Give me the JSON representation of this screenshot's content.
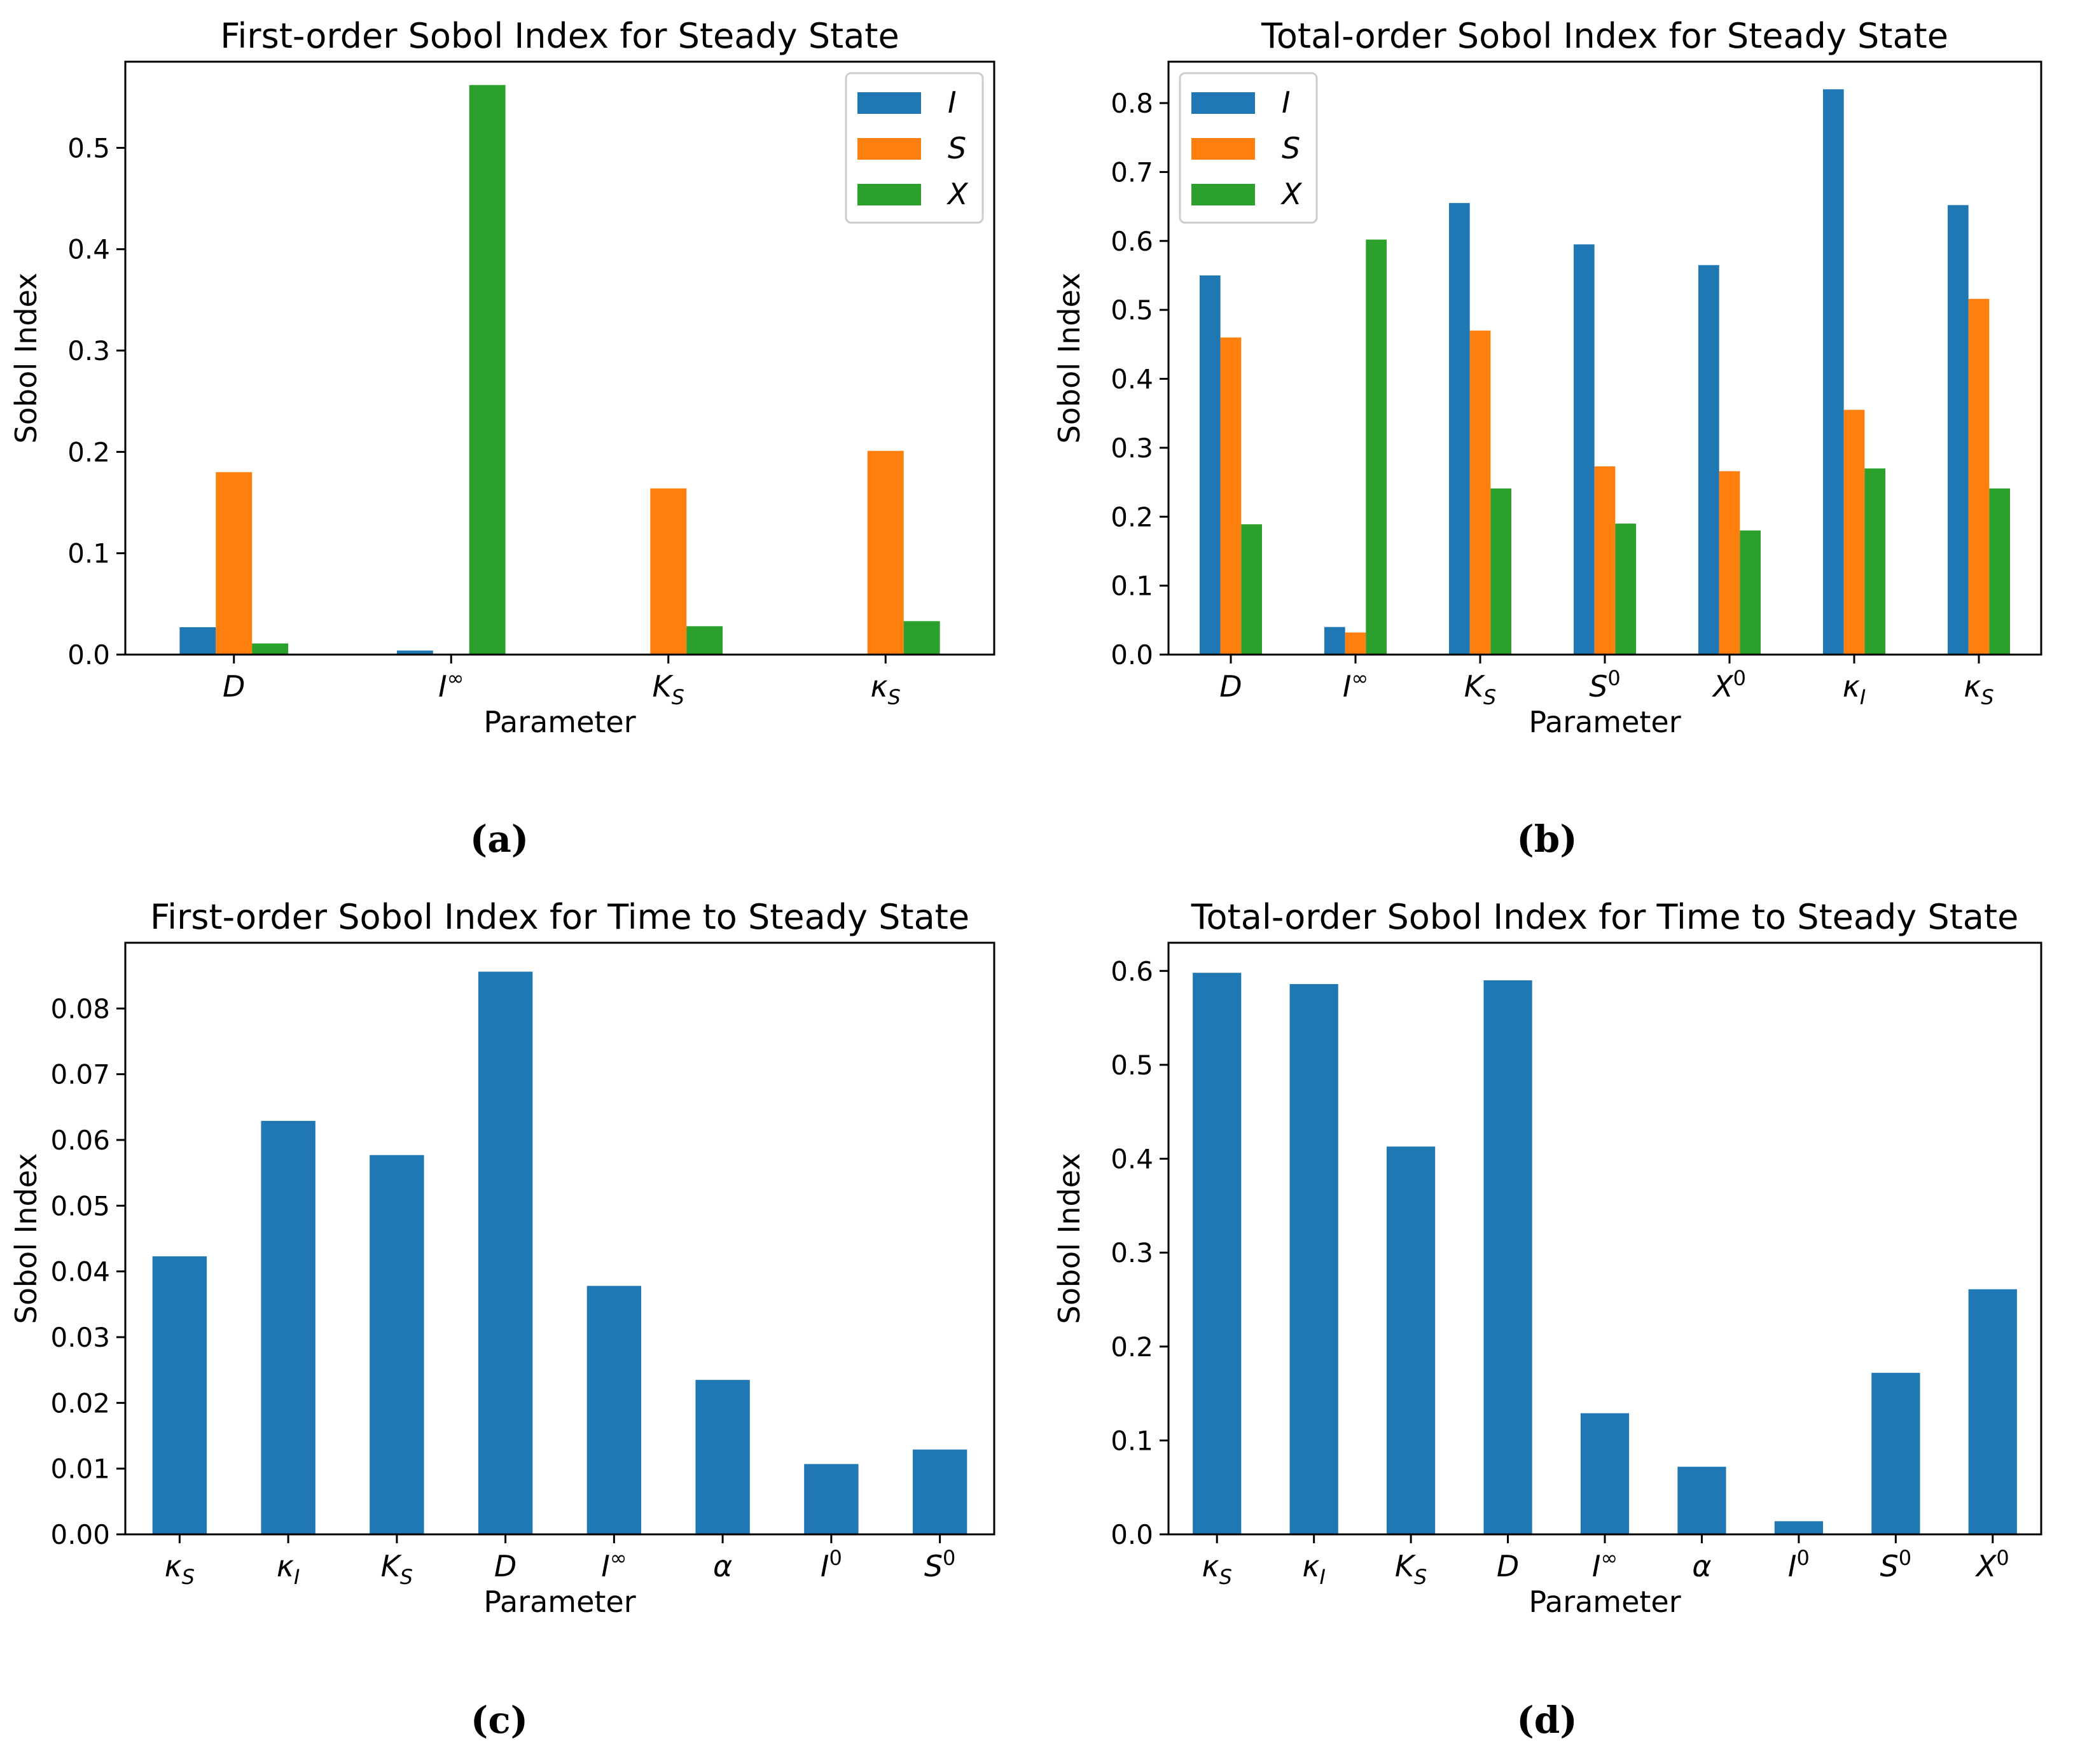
{
  "colors": {
    "I": "#1f77b4",
    "S": "#ff7f0e",
    "X": "#2ca02c"
  },
  "captions": [
    "(a)",
    "(b)",
    "(c)",
    "(d)"
  ],
  "chart_data": [
    {
      "type": "bar",
      "title": "First-order Sobol Index for Steady State",
      "xlabel": "Parameter",
      "ylabel": "Sobol Index",
      "ylim": [
        0,
        0.585
      ],
      "yticks": [
        "0.0",
        "0.1",
        "0.2",
        "0.3",
        "0.4",
        "0.5"
      ],
      "categories": [
        {
          "base": "D",
          "sup": "",
          "sub": ""
        },
        {
          "base": "I",
          "sup": "∞",
          "sub": ""
        },
        {
          "base": "K",
          "sup": "",
          "sub": "S"
        },
        {
          "base": "κ",
          "sup": "",
          "sub": "S"
        }
      ],
      "series": [
        {
          "name": "I",
          "values": [
            0.027,
            0.004,
            0.0,
            0.0
          ]
        },
        {
          "name": "S",
          "values": [
            0.18,
            0.0,
            0.164,
            0.201
          ]
        },
        {
          "name": "X",
          "values": [
            0.011,
            0.562,
            0.028,
            0.033
          ]
        }
      ],
      "legend": "top-right"
    },
    {
      "type": "bar",
      "title": "Total-order Sobol Index for Steady State",
      "xlabel": "Parameter",
      "ylabel": "Sobol Index",
      "ylim": [
        0,
        0.86
      ],
      "yticks": [
        "0.0",
        "0.1",
        "0.2",
        "0.3",
        "0.4",
        "0.5",
        "0.6",
        "0.7",
        "0.8"
      ],
      "categories": [
        {
          "base": "D",
          "sup": "",
          "sub": ""
        },
        {
          "base": "I",
          "sup": "∞",
          "sub": ""
        },
        {
          "base": "K",
          "sup": "",
          "sub": "S"
        },
        {
          "base": "S",
          "sup": "0",
          "sub": ""
        },
        {
          "base": "X",
          "sup": "0",
          "sub": ""
        },
        {
          "base": "κ",
          "sup": "",
          "sub": "I"
        },
        {
          "base": "κ",
          "sup": "",
          "sub": "S"
        }
      ],
      "series": [
        {
          "name": "I",
          "values": [
            0.55,
            0.04,
            0.655,
            0.595,
            0.565,
            0.82,
            0.652
          ]
        },
        {
          "name": "S",
          "values": [
            0.46,
            0.032,
            0.47,
            0.273,
            0.266,
            0.355,
            0.516
          ]
        },
        {
          "name": "X",
          "values": [
            0.189,
            0.602,
            0.241,
            0.19,
            0.18,
            0.27,
            0.241
          ]
        }
      ],
      "legend": "top-left"
    },
    {
      "type": "bar",
      "title": "First-order Sobol Index for Time to Steady State",
      "xlabel": "Parameter",
      "ylabel": "Sobol Index",
      "ylim": [
        0,
        0.09
      ],
      "yticks": [
        "0.00",
        "0.01",
        "0.02",
        "0.03",
        "0.04",
        "0.05",
        "0.06",
        "0.07",
        "0.08"
      ],
      "categories": [
        {
          "base": "κ",
          "sup": "",
          "sub": "S"
        },
        {
          "base": "κ",
          "sup": "",
          "sub": "I"
        },
        {
          "base": "K",
          "sup": "",
          "sub": "S"
        },
        {
          "base": "D",
          "sup": "",
          "sub": ""
        },
        {
          "base": "I",
          "sup": "∞",
          "sub": ""
        },
        {
          "base": "α",
          "sup": "",
          "sub": ""
        },
        {
          "base": "I",
          "sup": "0",
          "sub": ""
        },
        {
          "base": "S",
          "sup": "0",
          "sub": ""
        }
      ],
      "series": [
        {
          "name": "",
          "values": [
            0.0423,
            0.0629,
            0.0577,
            0.0856,
            0.0378,
            0.0235,
            0.0107,
            0.0129
          ]
        }
      ],
      "legend": "none"
    },
    {
      "type": "bar",
      "title": "Total-order Sobol Index for Time to Steady State",
      "xlabel": "Parameter",
      "ylabel": "Sobol Index",
      "ylim": [
        0,
        0.63
      ],
      "yticks": [
        "0.0",
        "0.1",
        "0.2",
        "0.3",
        "0.4",
        "0.5",
        "0.6"
      ],
      "categories": [
        {
          "base": "κ",
          "sup": "",
          "sub": "S"
        },
        {
          "base": "κ",
          "sup": "",
          "sub": "I"
        },
        {
          "base": "K",
          "sup": "",
          "sub": "S"
        },
        {
          "base": "D",
          "sup": "",
          "sub": ""
        },
        {
          "base": "I",
          "sup": "∞",
          "sub": ""
        },
        {
          "base": "α",
          "sup": "",
          "sub": ""
        },
        {
          "base": "I",
          "sup": "0",
          "sub": ""
        },
        {
          "base": "S",
          "sup": "0",
          "sub": ""
        },
        {
          "base": "X",
          "sup": "0",
          "sub": ""
        }
      ],
      "series": [
        {
          "name": "",
          "values": [
            0.598,
            0.586,
            0.413,
            0.59,
            0.129,
            0.072,
            0.014,
            0.172,
            0.261
          ]
        }
      ],
      "legend": "none"
    }
  ]
}
